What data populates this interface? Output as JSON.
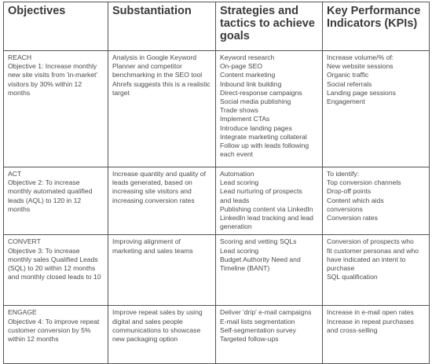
{
  "headers": [
    [
      "Objectives"
    ],
    [
      "Substantiation"
    ],
    [
      "Strategies and",
      "tactics to achieve",
      "goals"
    ],
    [
      "Key Performance",
      "Indicators (KPIs)"
    ]
  ],
  "rows": [
    {
      "objective": [
        "REACH",
        "Objective 1: Increase monthly",
        "new site visits from 'in-market'",
        "visitors by 30% within 12",
        "months"
      ],
      "substantiation": [
        "Analysis in Google Keyword",
        "Planner and competitor",
        "benchmarking in the SEO tool",
        "Ahrefs suggests this is a realistic",
        "target"
      ],
      "strategies": [
        "Keyword research",
        "On-page SEO",
        "Content marketing",
        "Inbound link building",
        "Direct-response campaigns",
        "Social media publishing",
        "Trade shows",
        "Implement CTAs",
        "Introduce landing pages",
        "Integrate marketing collateral",
        "Follow up with leads following",
        "each event"
      ],
      "kpis": [
        "Increase volume/% of:",
        "New website sessions",
        "Organic traffic",
        "Social referrals",
        "Landing page sessions",
        "Engagement"
      ]
    },
    {
      "objective": [
        "ACT",
        "Objective 2: To increase",
        "monthly automated qualified",
        "leads (AQL) to 120 in 12",
        "months"
      ],
      "substantiation": [
        "Increase quantity and quality of",
        "leads generated, based on",
        "increasing site visitors and",
        "increasing conversion rates"
      ],
      "strategies": [
        "Automation",
        "Lead scoring",
        "Lead nurturing of prospects",
        "and leads",
        "Publishing content via LinkedIn",
        "LinkedIn lead tracking and lead",
        "generation"
      ],
      "kpis": [
        "To identify:",
        "Top conversion channels",
        "Drop-off points",
        "Content which aids",
        "conversions",
        "Conversion rates"
      ]
    },
    {
      "objective": [
        "CONVERT",
        "Objective 3: To increase",
        "monthly sales Qualified Leads",
        "(SQL) to 20 within 12 months",
        "and monthly closed leads to 10"
      ],
      "substantiation": [
        "Improving alignment of",
        "marketing and sales teams"
      ],
      "strategies": [
        "Scoring and vetting SQLs",
        "Lead scoring",
        "Budget Authority Need and",
        "Timeline (BANT)"
      ],
      "kpis": [
        "Conversion of prospects who",
        "fit customer personas and who",
        "have indicated an intent to",
        "purchase",
        "SQL qualification"
      ]
    },
    {
      "objective": [
        "ENGAGE",
        "Objective 4: To improve repeat",
        "customer conversion by 5%",
        "within 12 months"
      ],
      "substantiation": [
        "Improve repeat sales by using",
        "digital and sales people",
        "communications to showcase",
        "new packaging option"
      ],
      "strategies": [
        "Deliver 'drip' e-mail campaigns",
        "E-mail lists segmentation",
        "Self-segmentation survey",
        "Targeted follow-ups"
      ],
      "kpis": [
        "Increase in e-mail open rates",
        "Increase in repeat purchases",
        "and cross-selling"
      ]
    }
  ]
}
